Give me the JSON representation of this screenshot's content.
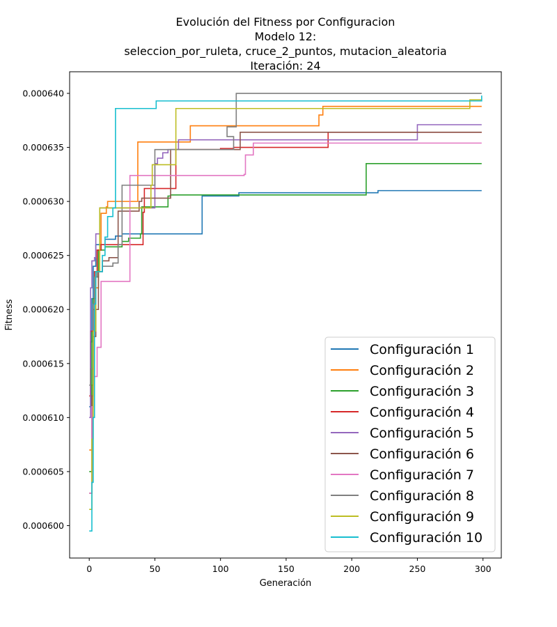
{
  "chart_data": {
    "type": "line",
    "title_lines": [
      "Evolución del Fitness por Configuracion",
      "Modelo 12:",
      "seleccion_por_ruleta, cruce_2_puntos, mutacion_aleatoria",
      "Iteración: 24"
    ],
    "xlabel": "Generación",
    "ylabel": "Fitness",
    "xlim": [
      -14.95,
      313.95
    ],
    "ylim": [
      0.000597,
      0.000642
    ],
    "xticks": [
      0,
      50,
      100,
      150,
      200,
      250,
      300
    ],
    "yticks": [
      0.0006,
      0.000605,
      0.00061,
      0.000615,
      0.00062,
      0.000625,
      0.00063,
      0.000635,
      0.00064
    ],
    "ytick_labels": [
      "0.000600",
      "0.000605",
      "0.000610",
      "0.000615",
      "0.000620",
      "0.000625",
      "0.000630",
      "0.000635",
      "0.000640"
    ],
    "grid": false,
    "legend_position": "lower-right",
    "line_style": "step",
    "series": [
      {
        "name": "Configuración 1",
        "color": "#1f77b4",
        "points": [
          [
            0,
            0.000611
          ],
          [
            1,
            0.000617
          ],
          [
            2,
            0.000621
          ],
          [
            3,
            0.000624
          ],
          [
            5,
            0.000626
          ],
          [
            8,
            0.000626
          ],
          [
            12,
            0.0006265
          ],
          [
            20,
            0.0006268
          ],
          [
            25,
            0.000627
          ],
          [
            85,
            0.000627
          ],
          [
            86,
            0.0006305
          ],
          [
            114,
            0.0006308
          ],
          [
            220,
            0.000631
          ],
          [
            299,
            0.000631
          ]
        ]
      },
      {
        "name": "Configuración 2",
        "color": "#ff7f0e",
        "points": [
          [
            0,
            0.000607
          ],
          [
            2,
            0.000613
          ],
          [
            3,
            0.000618
          ],
          [
            5,
            0.000622
          ],
          [
            7,
            0.0006255
          ],
          [
            9,
            0.0006289
          ],
          [
            13,
            0.0006295
          ],
          [
            14,
            0.00063
          ],
          [
            37,
            0.0006355
          ],
          [
            77,
            0.000637
          ],
          [
            175,
            0.000638
          ],
          [
            178,
            0.0006388
          ],
          [
            299,
            0.0006388
          ]
        ]
      },
      {
        "name": "Configuración 3",
        "color": "#2ca02c",
        "points": [
          [
            0,
            0.000605
          ],
          [
            2,
            0.000618
          ],
          [
            3,
            0.000621
          ],
          [
            5,
            0.000623
          ],
          [
            7,
            0.0006255
          ],
          [
            12,
            0.0006258
          ],
          [
            25,
            0.0006263
          ],
          [
            30,
            0.0006266
          ],
          [
            39,
            0.000627
          ],
          [
            40,
            0.0006295
          ],
          [
            60,
            0.0006305
          ],
          [
            62,
            0.0006306
          ],
          [
            210,
            0.0006306
          ],
          [
            211,
            0.0006335
          ],
          [
            299,
            0.0006335
          ]
        ]
      },
      {
        "name": "Configuración 4",
        "color": "#d62728",
        "points": [
          [
            0,
            0.000612
          ],
          [
            1,
            0.000618
          ],
          [
            3,
            0.00062
          ],
          [
            4,
            0.0006235
          ],
          [
            6,
            0.0006255
          ],
          [
            9,
            0.000626
          ],
          [
            40,
            0.000626
          ],
          [
            41,
            0.000629
          ],
          [
            42,
            0.0006312
          ],
          [
            65,
            0.0006312
          ],
          [
            66,
            0.0006348
          ],
          [
            100,
            0.0006349
          ],
          [
            110,
            0.000635
          ],
          [
            182,
            0.0006364
          ],
          [
            299,
            0.0006364
          ]
        ]
      },
      {
        "name": "Configuración 5",
        "color": "#9467bd",
        "points": [
          [
            0,
            0.00061
          ],
          [
            1,
            0.000622
          ],
          [
            2,
            0.0006245
          ],
          [
            4,
            0.0006248
          ],
          [
            5,
            0.000627
          ],
          [
            7,
            0.000627
          ],
          [
            8,
            0.0006294
          ],
          [
            48,
            0.0006294
          ],
          [
            50,
            0.0006335
          ],
          [
            52,
            0.000634
          ],
          [
            56,
            0.0006345
          ],
          [
            60,
            0.0006348
          ],
          [
            68,
            0.0006357
          ],
          [
            249,
            0.0006357
          ],
          [
            250,
            0.0006371
          ],
          [
            299,
            0.0006371
          ]
        ]
      },
      {
        "name": "Configuración 6",
        "color": "#8c564b",
        "points": [
          [
            0,
            0.000603
          ],
          [
            2,
            0.000612
          ],
          [
            3,
            0.0006175
          ],
          [
            5,
            0.00062
          ],
          [
            7,
            0.0006235
          ],
          [
            10,
            0.0006245
          ],
          [
            15,
            0.0006248
          ],
          [
            22,
            0.0006291
          ],
          [
            28,
            0.0006291
          ],
          [
            38,
            0.00063
          ],
          [
            40,
            0.0006303
          ],
          [
            60,
            0.0006303
          ],
          [
            62,
            0.0006348
          ],
          [
            115,
            0.0006364
          ],
          [
            299,
            0.0006364
          ]
        ]
      },
      {
        "name": "Configuración 7",
        "color": "#e377c2",
        "points": [
          [
            0,
            0.000603
          ],
          [
            2,
            0.000611
          ],
          [
            3,
            0.0006138
          ],
          [
            6,
            0.0006165
          ],
          [
            9,
            0.0006226
          ],
          [
            30,
            0.0006226
          ],
          [
            31,
            0.0006324
          ],
          [
            118,
            0.0006325
          ],
          [
            119,
            0.0006343
          ],
          [
            122,
            0.0006343
          ],
          [
            125,
            0.0006354
          ],
          [
            299,
            0.0006354
          ]
        ]
      },
      {
        "name": "Configuración 8",
        "color": "#7f7f7f",
        "points": [
          [
            0,
            0.000613
          ],
          [
            1,
            0.0006145
          ],
          [
            3,
            0.0006205
          ],
          [
            4,
            0.000623
          ],
          [
            6,
            0.0006235
          ],
          [
            10,
            0.000624
          ],
          [
            18,
            0.0006243
          ],
          [
            22,
            0.000626
          ],
          [
            25,
            0.0006315
          ],
          [
            50,
            0.0006348
          ],
          [
            110,
            0.000636
          ],
          [
            105,
            0.0006369
          ],
          [
            112,
            0.00064
          ],
          [
            299,
            0.00064
          ]
        ]
      },
      {
        "name": "Configuración 9",
        "color": "#bcbd22",
        "points": [
          [
            0,
            0.0006015
          ],
          [
            2,
            0.000608
          ],
          [
            3,
            0.000618
          ],
          [
            5,
            0.0006235
          ],
          [
            8,
            0.0006294
          ],
          [
            46,
            0.0006294
          ],
          [
            47,
            0.0006315
          ],
          [
            48,
            0.0006334
          ],
          [
            65,
            0.0006334
          ],
          [
            66,
            0.0006386
          ],
          [
            288,
            0.0006386
          ],
          [
            290,
            0.0006394
          ],
          [
            299,
            0.0006394
          ]
        ]
      },
      {
        "name": "Configuración 10",
        "color": "#17becf",
        "points": [
          [
            0,
            0.0005995
          ],
          [
            2,
            0.000604
          ],
          [
            3,
            0.00061
          ],
          [
            4,
            0.0006205
          ],
          [
            5,
            0.0006235
          ],
          [
            10,
            0.000625
          ],
          [
            12,
            0.0006267
          ],
          [
            14,
            0.0006286
          ],
          [
            18,
            0.0006294
          ],
          [
            20,
            0.0006386
          ],
          [
            50,
            0.0006386
          ],
          [
            51,
            0.0006393
          ],
          [
            299,
            0.0006398
          ]
        ]
      }
    ]
  }
}
